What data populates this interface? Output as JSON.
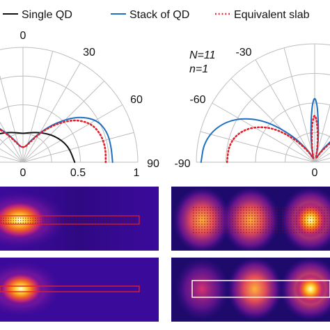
{
  "legend": {
    "items": [
      {
        "label": "Single QD",
        "color": "#111111",
        "style": "solid"
      },
      {
        "label": "Stack of QD",
        "color": "#1f6fc0",
        "style": "solid"
      },
      {
        "label": "Equivalent slab",
        "color": "#e0202a",
        "style": "dotted"
      }
    ]
  },
  "chart_data": [
    {
      "type": "polar",
      "panel": "left",
      "angle_ticks": [
        "0",
        "30",
        "60",
        "90"
      ],
      "radial_ticks": [
        "0",
        "0.5",
        "1"
      ],
      "rlim": [
        0,
        1
      ],
      "series": [
        {
          "name": "Single QD",
          "theta": [
            -90,
            -70,
            -50,
            -30,
            -10,
            0,
            10,
            30,
            50,
            70,
            90
          ],
          "r": [
            0.45,
            0.42,
            0.36,
            0.3,
            0.26,
            0.25,
            0.26,
            0.3,
            0.36,
            0.42,
            0.45
          ]
        },
        {
          "name": "Stack of QD",
          "theta": [
            -90,
            -80,
            -70,
            -60,
            -50,
            -40,
            -30,
            -20,
            -10,
            0,
            10,
            20,
            30,
            40,
            50,
            60,
            70,
            80,
            90
          ],
          "r": [
            0.78,
            0.78,
            0.78,
            0.74,
            0.62,
            0.45,
            0.3,
            0.2,
            0.14,
            0.13,
            0.14,
            0.2,
            0.3,
            0.45,
            0.62,
            0.74,
            0.78,
            0.78,
            0.78
          ]
        },
        {
          "name": "Equivalent slab",
          "theta": [
            -90,
            -80,
            -70,
            -60,
            -50,
            -40,
            -30,
            -20,
            -10,
            0,
            10,
            20,
            30,
            40,
            50,
            60,
            70,
            80,
            90
          ],
          "r": [
            0.72,
            0.73,
            0.72,
            0.68,
            0.58,
            0.43,
            0.29,
            0.19,
            0.14,
            0.13,
            0.14,
            0.19,
            0.29,
            0.43,
            0.58,
            0.68,
            0.72,
            0.73,
            0.72
          ]
        }
      ]
    },
    {
      "type": "polar",
      "panel": "right",
      "annotation": [
        "N=11",
        "n=1"
      ],
      "angle_ticks": [
        "-30",
        "-60",
        "-90",
        "0"
      ],
      "rlim": [
        0,
        1
      ],
      "series": [
        {
          "name": "Stack of QD",
          "theta": [
            -90,
            -80,
            -70,
            -60,
            -50,
            -40,
            -30,
            -25,
            -20,
            -15,
            -10,
            -6,
            -4,
            -2,
            0,
            2,
            4,
            6,
            10,
            15,
            20,
            30,
            40,
            50,
            60,
            70,
            80,
            90
          ],
          "r": [
            0.96,
            0.95,
            0.88,
            0.75,
            0.55,
            0.3,
            0.12,
            0.06,
            0.03,
            0.05,
            0.18,
            0.3,
            0.4,
            0.5,
            0.55,
            0.5,
            0.4,
            0.3,
            0.18,
            0.05,
            0.03,
            0.12,
            0.3,
            0.55,
            0.75,
            0.88,
            0.95,
            0.96
          ]
        },
        {
          "name": "Equivalent slab",
          "theta": [
            -90,
            -80,
            -70,
            -60,
            -50,
            -40,
            -30,
            -25,
            -20,
            -15,
            -10,
            -6,
            -4,
            -2,
            0,
            2,
            4,
            6,
            10,
            15,
            20,
            30,
            40,
            50,
            60,
            70,
            80,
            90
          ],
          "r": [
            0.74,
            0.74,
            0.7,
            0.6,
            0.45,
            0.25,
            0.1,
            0.05,
            0.03,
            0.05,
            0.14,
            0.24,
            0.31,
            0.37,
            0.4,
            0.37,
            0.31,
            0.24,
            0.14,
            0.05,
            0.03,
            0.1,
            0.25,
            0.45,
            0.6,
            0.7,
            0.74,
            0.74
          ]
        }
      ]
    }
  ]
}
